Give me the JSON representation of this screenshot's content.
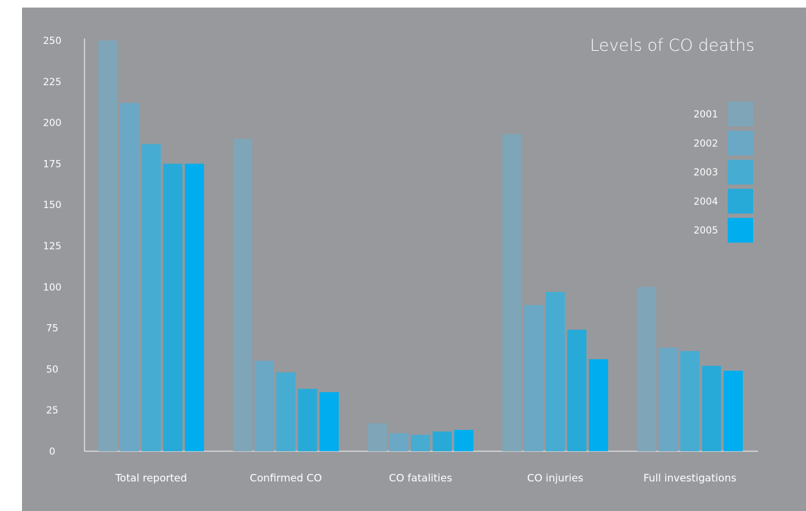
{
  "chart_data": {
    "type": "bar",
    "title": "Levels of CO deaths",
    "xlabel": "",
    "ylabel": "",
    "ylim": [
      0,
      250
    ],
    "yticks": [
      0,
      25,
      50,
      75,
      100,
      125,
      150,
      175,
      200,
      225,
      250
    ],
    "grid": false,
    "legend_position": "top-right",
    "categories": [
      "Total reported",
      "Confirmed CO",
      "CO fatalities",
      "CO injuries",
      "Full investigations"
    ],
    "series": [
      {
        "name": "2001",
        "color": "#7ea6b8",
        "values": [
          250,
          190,
          17,
          193,
          100
        ]
      },
      {
        "name": "2002",
        "color": "#6aa8c6",
        "values": [
          212,
          55,
          11,
          89,
          63
        ]
      },
      {
        "name": "2003",
        "color": "#47acd2",
        "values": [
          187,
          48,
          10,
          97,
          61
        ]
      },
      {
        "name": "2004",
        "color": "#28aad9",
        "values": [
          175,
          38,
          12,
          74,
          52
        ]
      },
      {
        "name": "2005",
        "color": "#00aeef",
        "values": [
          175,
          36,
          13,
          56,
          49
        ]
      }
    ]
  },
  "colors": {
    "background": "#98999d",
    "text": "#ffffff",
    "axis": "#ffffff"
  }
}
